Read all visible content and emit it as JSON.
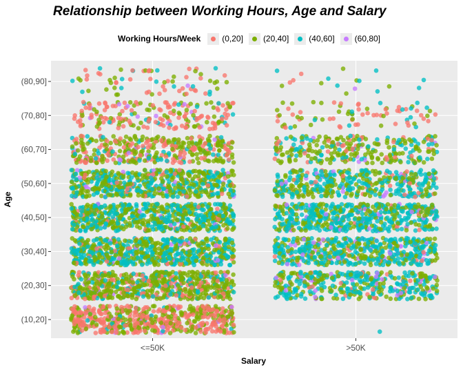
{
  "chart_data": {
    "type": "scatter",
    "title": "Relationship between Working Hours, Age and Salary",
    "xlabel": "Salary",
    "ylabel": "Age",
    "x_categories": [
      "<=50K",
      ">50K"
    ],
    "y_categories": [
      "(10,20]",
      "(20,30]",
      "(30,40]",
      "(40,50]",
      "(50,60]",
      "(60,70]",
      "(70,80]",
      "(80,90]"
    ],
    "legend": {
      "title": "Working Hours/Week",
      "position": "top",
      "entries": [
        {
          "label": "(0,20]",
          "color": "#F8766D"
        },
        {
          "label": "(20,40]",
          "color": "#7CAE00"
        },
        {
          "label": "(40,60]",
          "color": "#00BFC4"
        },
        {
          "label": "(60,80]",
          "color": "#C77CFF"
        }
      ]
    },
    "jitter": true,
    "grid": true,
    "background": "#EBEBEB",
    "point_density": [
      {
        "salary": "<=50K",
        "age": "(10,20]",
        "count": 2400,
        "mix": [
          0.55,
          0.4,
          0.03,
          0.02
        ]
      },
      {
        "salary": "<=50K",
        "age": "(20,30]",
        "count": 2600,
        "mix": [
          0.18,
          0.6,
          0.19,
          0.03
        ]
      },
      {
        "salary": "<=50K",
        "age": "(30,40]",
        "count": 2600,
        "mix": [
          0.05,
          0.47,
          0.45,
          0.03
        ]
      },
      {
        "salary": "<=50K",
        "age": "(40,50]",
        "count": 2500,
        "mix": [
          0.05,
          0.47,
          0.45,
          0.03
        ]
      },
      {
        "salary": "<=50K",
        "age": "(50,60]",
        "count": 2300,
        "mix": [
          0.07,
          0.5,
          0.4,
          0.03
        ]
      },
      {
        "salary": "<=50K",
        "age": "(60,70]",
        "count": 1500,
        "mix": [
          0.3,
          0.55,
          0.12,
          0.03
        ]
      },
      {
        "salary": "<=50K",
        "age": "(70,80]",
        "count": 280,
        "mix": [
          0.6,
          0.28,
          0.08,
          0.04
        ]
      },
      {
        "salary": "<=50K",
        "age": "(80,90]",
        "count": 70,
        "mix": [
          0.45,
          0.35,
          0.15,
          0.05
        ]
      },
      {
        "salary": ">50K",
        "age": "(20,30]",
        "count": 600,
        "mix": [
          0.07,
          0.38,
          0.48,
          0.07
        ]
      },
      {
        "salary": ">50K",
        "age": "(30,40]",
        "count": 2100,
        "mix": [
          0.04,
          0.34,
          0.55,
          0.07
        ]
      },
      {
        "salary": ">50K",
        "age": "(40,50]",
        "count": 2200,
        "mix": [
          0.04,
          0.34,
          0.55,
          0.07
        ]
      },
      {
        "salary": ">50K",
        "age": "(50,60]",
        "count": 1700,
        "mix": [
          0.06,
          0.38,
          0.5,
          0.06
        ]
      },
      {
        "salary": ">50K",
        "age": "(60,70]",
        "count": 400,
        "mix": [
          0.15,
          0.55,
          0.26,
          0.04
        ]
      },
      {
        "salary": ">50K",
        "age": "(70,80]",
        "count": 80,
        "mix": [
          0.4,
          0.35,
          0.2,
          0.05
        ]
      },
      {
        "salary": ">50K",
        "age": "(80,90]",
        "count": 18,
        "mix": [
          0.25,
          0.4,
          0.3,
          0.05
        ]
      },
      {
        "salary": ">50K",
        "age": "(10,20]",
        "count": 1,
        "mix": [
          0.0,
          0.0,
          1.0,
          0.0
        ]
      }
    ]
  }
}
